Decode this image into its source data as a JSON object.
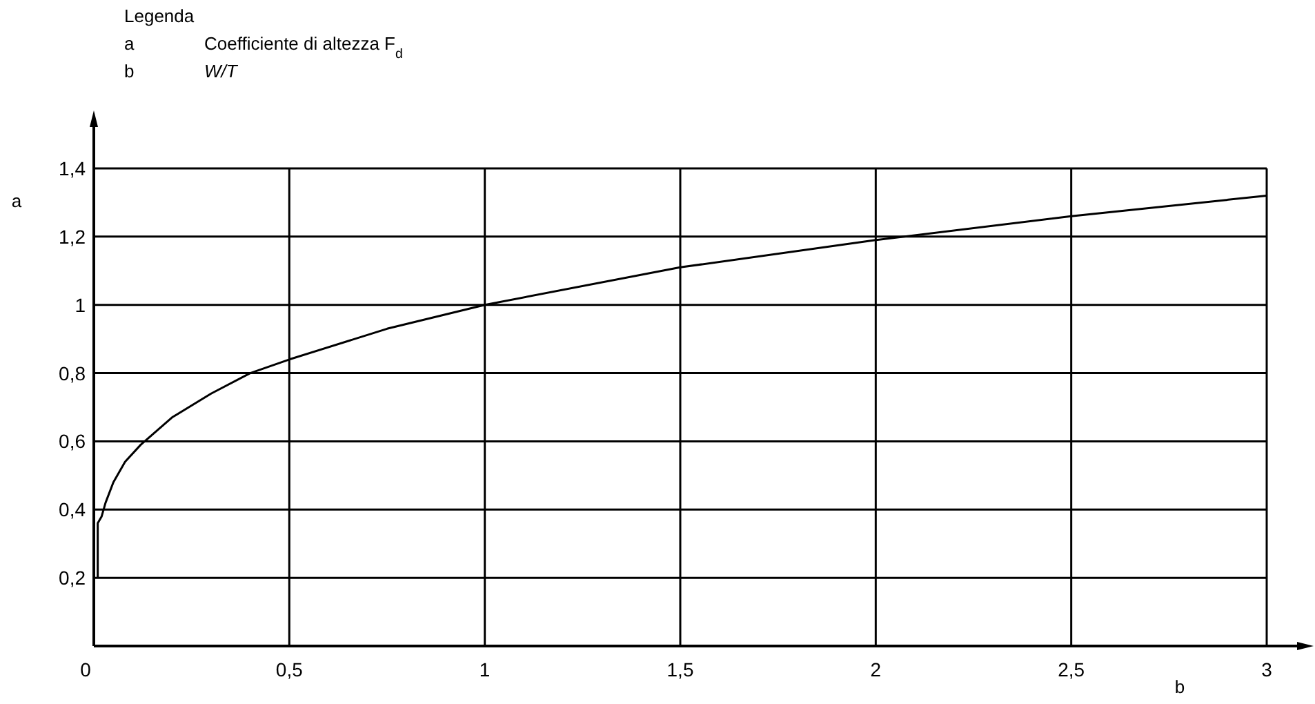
{
  "chart_data": {
    "type": "line",
    "xlabel": "b",
    "ylabel": "a",
    "annotations": [
      "Legenda",
      "a",
      "Coefficiente di altezza F$_{d}$",
      "b",
      "W/T"
    ],
    "series": [
      {
        "color": "#000000",
        "x": [
          0.01,
          0.01,
          0.02,
          0.03,
          0.05,
          0.08,
          0.12,
          0.2,
          0.3,
          0.4,
          0.5,
          0.75,
          1,
          1.5,
          2,
          2.5,
          3
        ],
        "values": [
          0.2,
          0.36,
          0.38,
          0.42,
          0.48,
          0.54,
          0.59,
          0.67,
          0.74,
          0.8,
          0.84,
          0.93,
          1,
          1.11,
          1.19,
          1.26,
          1.32
        ]
      }
    ],
    "xlim": [
      0,
      3
    ],
    "ylim": [
      0,
      1.4
    ],
    "xticks": [
      0,
      {
        "value": 0.5,
        "label": "0,5"
      },
      1,
      {
        "value": 1.5,
        "label": "1,5"
      },
      2,
      {
        "value": 2.5,
        "label": "2,5"
      },
      3
    ],
    "yticks": [
      {
        "value": 0,
        "label": null
      },
      {
        "value": 0.2,
        "label": "0,2"
      },
      {
        "value": 0.4,
        "label": "0,4"
      },
      {
        "value": 0.6,
        "label": "0,6"
      },
      {
        "value": 0.8,
        "label": "0,8"
      },
      1,
      {
        "value": 1.2,
        "label": "1,2"
      },
      {
        "value": 1.4,
        "label": "1,4"
      }
    ],
    "grid": true,
    "marker": "none",
    "line_style": "solid"
  }
}
